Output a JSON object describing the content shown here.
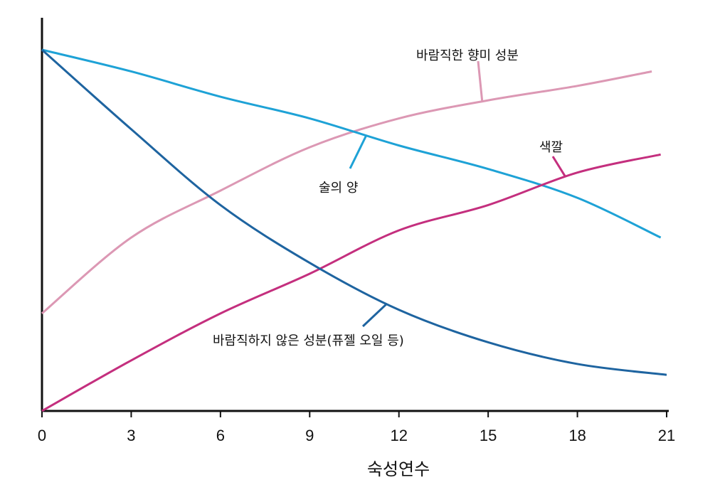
{
  "chart_data": {
    "type": "line",
    "title": "",
    "xlabel": "숙성연수",
    "ylabel": "",
    "xlim": [
      0,
      21
    ],
    "ylim": [
      0,
      100
    ],
    "x_ticks": [
      0,
      3,
      6,
      9,
      12,
      15,
      18,
      21
    ],
    "y_ticks": [],
    "grid": false,
    "colors": {
      "axis": "#111111",
      "desirable_flavor": "#dc98b4",
      "alcohol": "#1ea2d6",
      "color": "#c42f7e",
      "undesirable": "#1e64a0"
    },
    "series": [
      {
        "key": "desirable_flavor",
        "name": "바람직한 향미 성분",
        "x": [
          0,
          3,
          6,
          9,
          12,
          15,
          18,
          20.5
        ],
        "y": [
          27,
          48,
          61,
          73,
          81,
          86,
          90,
          94
        ]
      },
      {
        "key": "alcohol",
        "name": "술의 양",
        "x": [
          0,
          3,
          6,
          9,
          12,
          15,
          18,
          20.8
        ],
        "y": [
          100,
          94,
          87,
          81,
          73.5,
          67,
          59,
          48
        ]
      },
      {
        "key": "color",
        "name": "색깔",
        "x": [
          0,
          3,
          6,
          9,
          12,
          15,
          18,
          20.8
        ],
        "y": [
          0,
          14,
          27,
          38,
          50,
          57,
          66,
          71
        ]
      },
      {
        "key": "undesirable",
        "name": "바람직하지 않은 성분(퓨젤 오일 등)",
        "x": [
          0,
          3,
          6,
          9,
          12,
          15,
          18,
          21
        ],
        "y": [
          100,
          78,
          57,
          41,
          28,
          19,
          13,
          10
        ]
      }
    ],
    "annotations": [
      {
        "series": "desirable_flavor",
        "text": "바람직한 향미 성분",
        "at_x": 14.8
      },
      {
        "series": "alcohol",
        "text": "술의 양",
        "at_x": 10.9
      },
      {
        "series": "color",
        "text": "색깔",
        "at_x": 17.6
      },
      {
        "series": "undesirable",
        "text": "바람직하지 않은 성분(퓨젤 오일 등)",
        "at_x": 11.6
      }
    ]
  }
}
